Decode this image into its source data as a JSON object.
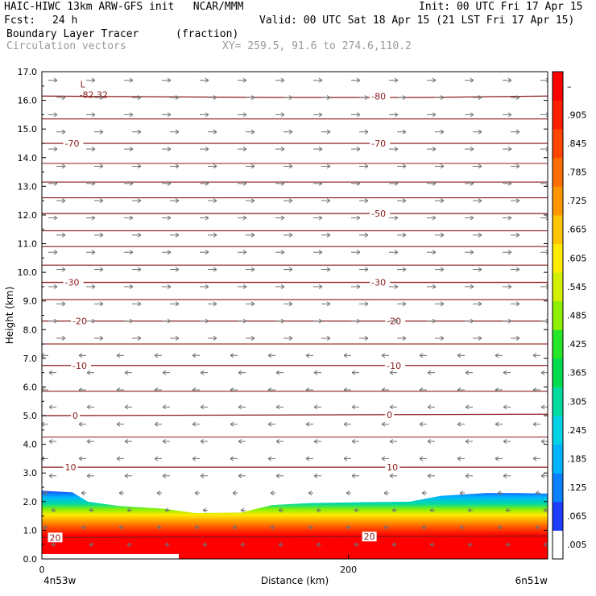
{
  "header": {
    "title_left": "HAIC-HIWC 13km ARW-GFS init   NCAR/MMM",
    "init": "Init: 00 UTC Fri 17 Apr 15",
    "fcst_label": "Fcst:",
    "fcst_value": "24 h",
    "valid": "Valid: 00 UTC Sat 18 Apr 15 (21 LST Fri 17 Apr 15)",
    "field_name": "Boundary Layer Tracer",
    "field_units": "(fraction)",
    "overlay_name": "Circulation vectors",
    "xy_range": "XY= 259.5, 91.6 to 274.6,110.2"
  },
  "chart_data": {
    "type": "heatmap",
    "xlabel": "Distance (km)",
    "ylabel": "Height (km)",
    "xlim": [
      0,
      330
    ],
    "ylim": [
      0.0,
      17.0
    ],
    "x_ticks": [
      0,
      200
    ],
    "x_tick_labels": [
      "0",
      "200"
    ],
    "x_endpoint_labels": [
      "4n53w",
      "6n51w"
    ],
    "y_ticks": [
      0.0,
      1.0,
      2.0,
      3.0,
      4.0,
      5.0,
      6.0,
      7.0,
      8.0,
      9.0,
      10.0,
      11.0,
      12.0,
      13.0,
      14.0,
      15.0,
      16.0,
      17.0
    ],
    "y_tick_labels": [
      "0.0",
      "1.0",
      "2.0",
      "3.0",
      "4.0",
      "5.0",
      "6.0",
      "7.0",
      "8.0",
      "9.0",
      "10.0",
      "11.0",
      "12.0",
      "13.0",
      "14.0",
      "15.0",
      "16.0",
      "17.0"
    ],
    "colorbar": {
      "labels": [
        ".005",
        ".065",
        ".125",
        ".185",
        ".245",
        ".305",
        ".365",
        ".425",
        ".485",
        ".545",
        ".605",
        ".665",
        ".725",
        ".785",
        ".845",
        ".905",
        "–"
      ],
      "colors": [
        "#ffffff",
        "#1e3cff",
        "#0a82ff",
        "#00b4ff",
        "#00d2e6",
        "#00dca0",
        "#00dc50",
        "#28e628",
        "#8cf000",
        "#d2f000",
        "#ffeb00",
        "#ffc300",
        "#ff9600",
        "#ff6e00",
        "#ff4600",
        "#ff1e00",
        "#ff0000"
      ]
    },
    "tracer_top_km": [
      [
        0,
        2.38
      ],
      [
        20,
        2.32
      ],
      [
        30,
        2.0
      ],
      [
        50,
        1.85
      ],
      [
        80,
        1.75
      ],
      [
        100,
        1.6
      ],
      [
        130,
        1.62
      ],
      [
        150,
        1.88
      ],
      [
        175,
        1.95
      ],
      [
        210,
        1.98
      ],
      [
        240,
        2.0
      ],
      [
        260,
        2.2
      ],
      [
        290,
        2.3
      ],
      [
        310,
        2.3
      ],
      [
        330,
        2.28
      ]
    ],
    "temperature_contours_C": [
      {
        "label": "-80",
        "levels_km": [
          [
            0,
            16.15
          ],
          [
            150,
            16.1
          ],
          [
            250,
            16.1
          ],
          [
            330,
            16.15
          ]
        ],
        "label_x": 215
      },
      {
        "label": "-70",
        "levels_km": [
          [
            0,
            14.5
          ],
          [
            330,
            14.5
          ]
        ],
        "label_x": 15
      },
      {
        "label": "-70",
        "levels_km": [],
        "label_x": 215
      },
      {
        "label": "-50",
        "levels_km": [
          [
            0,
            12.05
          ],
          [
            330,
            12.05
          ]
        ],
        "label_x": 215
      },
      {
        "label": "-30",
        "levels_km": [
          [
            0,
            9.65
          ],
          [
            330,
            9.65
          ]
        ],
        "label_x": 15
      },
      {
        "label": "-30",
        "levels_km": [],
        "label_x": 215
      },
      {
        "label": "-20",
        "levels_km": [
          [
            0,
            8.3
          ],
          [
            330,
            8.3
          ]
        ],
        "label_x": 20
      },
      {
        "label": "-20",
        "levels_km": [],
        "label_x": 225
      },
      {
        "label": "-10",
        "levels_km": [
          [
            0,
            6.75
          ],
          [
            330,
            6.75
          ]
        ],
        "label_x": 20
      },
      {
        "label": "-10",
        "levels_km": [],
        "label_x": 225
      },
      {
        "label": "0",
        "levels_km": [
          [
            0,
            5.0
          ],
          [
            330,
            5.05
          ]
        ],
        "label_x": 20
      },
      {
        "label": "0",
        "levels_km": [],
        "label_x": 225
      },
      {
        "label": "10",
        "levels_km": [
          [
            0,
            3.2
          ],
          [
            330,
            3.2
          ]
        ],
        "label_x": 15
      },
      {
        "label": "10",
        "levels_km": [],
        "label_x": 225
      },
      {
        "label": "20",
        "levels_km": [
          [
            0,
            0.75
          ],
          [
            330,
            0.8
          ]
        ],
        "label_x": 5
      },
      {
        "label": "20",
        "levels_km": [],
        "label_x": 210
      }
    ],
    "other_contours_km": [
      15.35,
      13.8,
      13.15,
      12.6,
      11.45,
      10.9,
      10.25,
      9.05,
      7.5,
      5.85,
      4.25
    ],
    "low_label": "L",
    "low_value": "-82.32",
    "low_position": [
      25,
      16.45
    ],
    "wind_vectors": {
      "upper_direction": "westerly",
      "lower_direction": "easterly",
      "reversal_height_km": 7.3
    }
  }
}
